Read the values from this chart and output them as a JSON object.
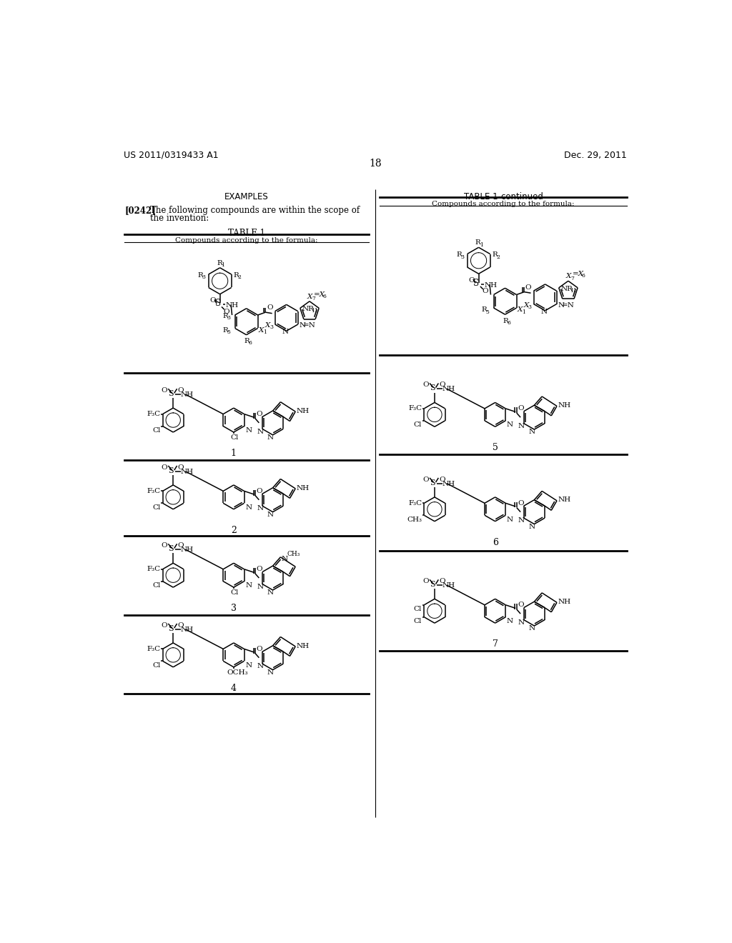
{
  "page_header_left": "US 2011/0319433 A1",
  "page_header_right": "Dec. 29, 2011",
  "page_number": "18",
  "section_title": "EXAMPLES",
  "paragraph_label": "[0242]",
  "table1_title": "TABLE 1",
  "table1_continued_title": "TABLE 1-continued",
  "table_subtitle": "Compounds according to the formula:",
  "bg_color": "#ffffff"
}
